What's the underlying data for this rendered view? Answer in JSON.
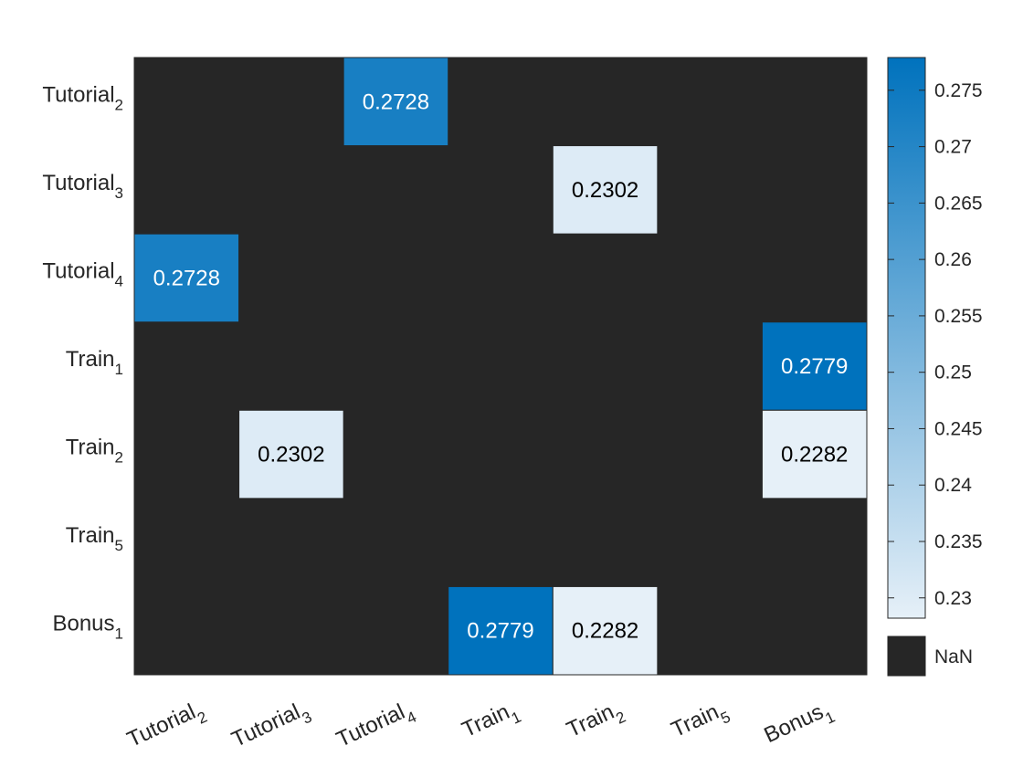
{
  "chart_data": {
    "type": "heatmap",
    "rows": [
      {
        "base": "Tutorial",
        "sub": "2"
      },
      {
        "base": "Tutorial",
        "sub": "3"
      },
      {
        "base": "Tutorial",
        "sub": "4"
      },
      {
        "base": "Train",
        "sub": "1"
      },
      {
        "base": "Train",
        "sub": "2"
      },
      {
        "base": "Train",
        "sub": "5"
      },
      {
        "base": "Bonus",
        "sub": "1"
      }
    ],
    "columns": [
      {
        "base": "Tutorial",
        "sub": "2"
      },
      {
        "base": "Tutorial",
        "sub": "3"
      },
      {
        "base": "Tutorial",
        "sub": "4"
      },
      {
        "base": "Train",
        "sub": "1"
      },
      {
        "base": "Train",
        "sub": "2"
      },
      {
        "base": "Train",
        "sub": "5"
      },
      {
        "base": "Bonus",
        "sub": "1"
      }
    ],
    "cells": [
      {
        "row": 0,
        "col": 2,
        "value": 0.2728,
        "label": "0.2728"
      },
      {
        "row": 1,
        "col": 4,
        "value": 0.2302,
        "label": "0.2302"
      },
      {
        "row": 2,
        "col": 0,
        "value": 0.2728,
        "label": "0.2728"
      },
      {
        "row": 3,
        "col": 6,
        "value": 0.2779,
        "label": "0.2779"
      },
      {
        "row": 4,
        "col": 1,
        "value": 0.2302,
        "label": "0.2302"
      },
      {
        "row": 4,
        "col": 6,
        "value": 0.2282,
        "label": "0.2282"
      },
      {
        "row": 6,
        "col": 3,
        "value": 0.2779,
        "label": "0.2779"
      },
      {
        "row": 6,
        "col": 4,
        "value": 0.2282,
        "label": "0.2282"
      }
    ],
    "missing_label": "NaN",
    "colorbar": {
      "min": 0.2282,
      "max": 0.2779,
      "ticks": [
        0.23,
        0.235,
        0.24,
        0.245,
        0.25,
        0.255,
        0.26,
        0.265,
        0.27,
        0.275
      ],
      "tick_labels": [
        "0.23",
        "0.235",
        "0.24",
        "0.245",
        "0.25",
        "0.255",
        "0.26",
        "0.265",
        "0.27",
        "0.275"
      ],
      "color_low": "#e6f0f8",
      "color_high": "#0072bd"
    },
    "colors": {
      "nan_fill": "#262626",
      "text_dark": "#000000",
      "text_light": "#ffffff",
      "axis_text": "#262626"
    },
    "xtick_rotation_deg": 25
  }
}
